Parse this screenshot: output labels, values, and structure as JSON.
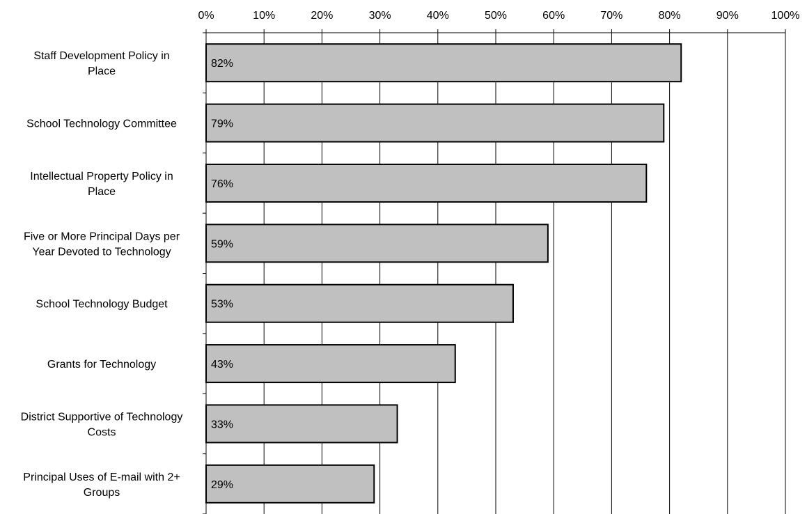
{
  "chart_data": {
    "type": "bar",
    "orientation": "horizontal",
    "title": "",
    "xlabel": "",
    "ylabel": "",
    "xlim": [
      0,
      100
    ],
    "x_tick_labels": [
      "0%",
      "10%",
      "20%",
      "30%",
      "40%",
      "50%",
      "60%",
      "70%",
      "80%",
      "90%",
      "100%"
    ],
    "x_axis_position": "top",
    "grid": "vertical",
    "legend": "none",
    "categories": [
      "Staff Development Policy in Place",
      "School Technology Committee",
      "Intellectual Property Policy in Place",
      "Five or More Principal Days per Year Devoted to Technology",
      "School Technology Budget",
      "Grants for Technology",
      "District Supportive of Technology Costs",
      "Principal Uses of E-mail with 2+ Groups"
    ],
    "category_label_lines": [
      [
        "Staff Development Policy in",
        "Place"
      ],
      [
        "School Technology Committee"
      ],
      [
        "Intellectual Property Policy in",
        "Place"
      ],
      [
        "Five or More Principal Days per",
        "Year Devoted to Technology"
      ],
      [
        "School Technology Budget"
      ],
      [
        "Grants for Technology"
      ],
      [
        "District Supportive of Technology",
        "Costs"
      ],
      [
        "Principal Uses of E-mail with 2+",
        "Groups"
      ]
    ],
    "values": [
      82,
      79,
      76,
      59,
      53,
      43,
      33,
      29
    ],
    "data_labels": [
      "82%",
      "79%",
      "76%",
      "59%",
      "53%",
      "43%",
      "33%",
      "29%"
    ],
    "colors": {
      "bar_fill": "#c0c0c0",
      "bar_stroke": "#000000",
      "grid": "#000000",
      "axis": "#000000"
    }
  }
}
